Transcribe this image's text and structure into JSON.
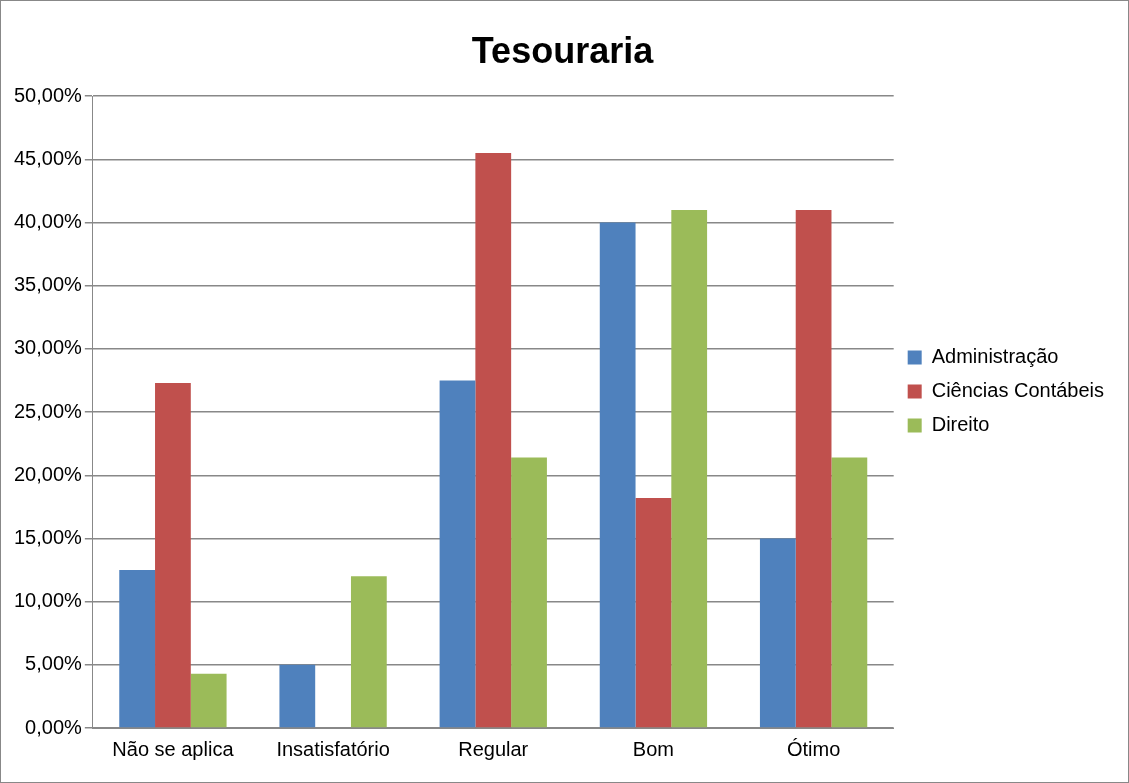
{
  "chart_data": {
    "type": "bar",
    "title": "Tesouraria",
    "categories": [
      "Não se aplica",
      "Insatisfatório",
      "Regular",
      "Bom",
      "Ótimo"
    ],
    "series": [
      {
        "name": "Administração",
        "color": "#4f81bd",
        "values": [
          12.5,
          5,
          27.5,
          40,
          15
        ]
      },
      {
        "name": "Ciências Contábeis",
        "color": "#c0504d",
        "values": [
          27.3,
          0,
          45.5,
          18.2,
          41
        ]
      },
      {
        "name": "Direito",
        "color": "#9bbb59",
        "values": [
          4.3,
          12,
          21.4,
          41,
          21.4
        ]
      }
    ],
    "ylim": [
      0,
      50
    ],
    "yticks": [
      {
        "value": 0,
        "label": "0,00%"
      },
      {
        "value": 5,
        "label": "5,00%"
      },
      {
        "value": 10,
        "label": "10,00%"
      },
      {
        "value": 15,
        "label": "15,00%"
      },
      {
        "value": 20,
        "label": "20,00%"
      },
      {
        "value": 25,
        "label": "25,00%"
      },
      {
        "value": 30,
        "label": "30,00%"
      },
      {
        "value": 35,
        "label": "35,00%"
      },
      {
        "value": 40,
        "label": "40,00%"
      },
      {
        "value": 45,
        "label": "45,00%"
      },
      {
        "value": 50,
        "label": "50,00%"
      }
    ],
    "grid": "y",
    "legend": "right"
  }
}
